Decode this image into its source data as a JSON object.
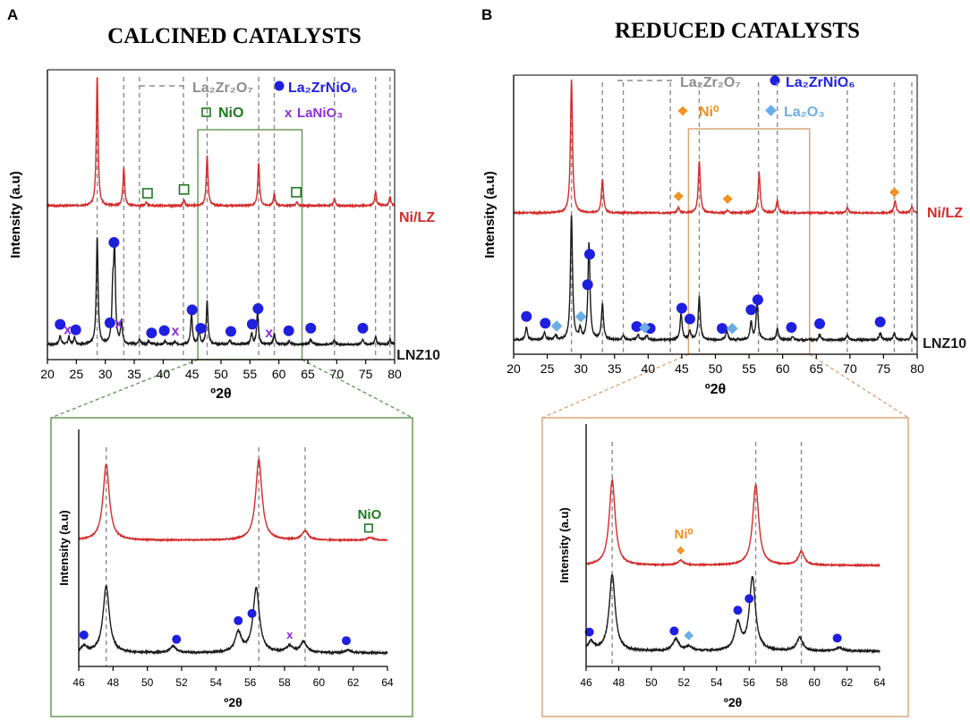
{
  "figure": {
    "panel_a": {
      "letter": "A",
      "title": "CALCINED CATALYSTS"
    },
    "panel_b": {
      "letter": "B",
      "title": "REDUCED CATALYSTS"
    },
    "xlabel": "º2θ",
    "ylabel": "Intensity (a.u)"
  },
  "legend_a": {
    "la2zr2o7": "La₂Zr₂O₇",
    "la2zrnio6": "La₂ZrNiO₆",
    "nio": "NiO",
    "lanio3": "LaNiO₃"
  },
  "legend_b": {
    "la2zr2o7": "La₂Zr₂O₇",
    "la2zrnio6": "La₂ZrNiO₆",
    "ni0": "Ni⁰",
    "la2o3": "La₂O₃"
  },
  "series_labels": {
    "top": "Ni/LZ",
    "bottom": "LNZ10"
  },
  "inset_labels": {
    "nio": "NiO",
    "ni0": "Ni⁰"
  },
  "colors": {
    "nilz": "#d42a2a",
    "lnz10": "#1a1a1a",
    "la2zrnio6": "#1f1fe0",
    "nio": "#1f7a1f",
    "lanio3": "#8a2be2",
    "ni0": "#f0901e",
    "la2o3": "#6aaee8",
    "dash": "#8c8c8c",
    "zoom_a": "#6a9a5a",
    "zoom_b": "#d9a77a"
  },
  "chart_data": [
    {
      "id": "A-main",
      "type": "line",
      "title": "CALCINED CATALYSTS",
      "xlabel": "º2θ",
      "ylabel": "Intensity (a.u)",
      "xlim": [
        20,
        80
      ],
      "xticks": [
        20,
        25,
        30,
        35,
        40,
        45,
        50,
        55,
        60,
        65,
        70,
        75,
        80
      ],
      "reference_lines_La2Zr2O7": [
        28.6,
        33.2,
        35.9,
        43.5,
        47.6,
        56.5,
        59.2,
        69.6,
        76.7,
        79.2
      ],
      "series": [
        {
          "name": "Ni/LZ",
          "peaks": [
            [
              28.6,
              145
            ],
            [
              33.2,
              42
            ],
            [
              37.1,
              4
            ],
            [
              43.6,
              6
            ],
            [
              47.6,
              56
            ],
            [
              56.5,
              48
            ],
            [
              59.2,
              14
            ],
            [
              63.1,
              4
            ],
            [
              69.6,
              8
            ],
            [
              76.7,
              16
            ],
            [
              79.2,
              10
            ]
          ]
        },
        {
          "name": "LNZ10",
          "peaks": [
            [
              22.2,
              10
            ],
            [
              23.7,
              8
            ],
            [
              24.7,
              8
            ],
            [
              28.6,
              120
            ],
            [
              31.3,
              55
            ],
            [
              31.6,
              100
            ],
            [
              32.8,
              25
            ],
            [
              35.9,
              6
            ],
            [
              37.5,
              4
            ],
            [
              40.3,
              4
            ],
            [
              42.0,
              3
            ],
            [
              44.9,
              34
            ],
            [
              46.2,
              16
            ],
            [
              47.6,
              48
            ],
            [
              51.5,
              5
            ],
            [
              55.3,
              12
            ],
            [
              56.3,
              36
            ],
            [
              59.2,
              12
            ],
            [
              61.8,
              4
            ],
            [
              65.5,
              6
            ],
            [
              69.6,
              5
            ],
            [
              74.5,
              6
            ],
            [
              76.7,
              9
            ],
            [
              79.2,
              6
            ]
          ]
        }
      ],
      "markers": {
        "Ni/LZ": {
          "NiO": [
            37.3,
            43.6,
            63.0
          ]
        },
        "LNZ10": {
          "La2ZrNiO6": [
            22.2,
            24.9,
            30.8,
            31.5,
            38.0,
            40.2,
            45.0,
            46.5,
            51.7,
            55.4,
            56.4,
            61.7,
            65.5,
            74.5
          ],
          "LaNiO3": [
            23.5,
            32.3,
            42.1,
            58.3
          ]
        }
      }
    },
    {
      "id": "A-inset",
      "type": "line",
      "xlabel": "º2θ",
      "ylabel": "Intensity (a.u)",
      "xlim": [
        46,
        64
      ],
      "xticks": [
        46,
        48,
        50,
        52,
        54,
        56,
        58,
        60,
        62,
        64
      ],
      "reference_lines_La2Zr2O7": [
        47.6,
        56.5,
        59.2
      ],
      "series": [
        {
          "name": "Ni/LZ",
          "peaks": [
            [
              47.6,
              85
            ],
            [
              56.5,
              90
            ],
            [
              59.2,
              10
            ],
            [
              63.0,
              3
            ]
          ]
        },
        {
          "name": "LNZ10",
          "peaks": [
            [
              46.3,
              7
            ],
            [
              47.6,
              75
            ],
            [
              51.5,
              7
            ],
            [
              55.3,
              22
            ],
            [
              56.35,
              72
            ],
            [
              58.3,
              7
            ],
            [
              59.1,
              12
            ],
            [
              61.7,
              3
            ]
          ]
        }
      ],
      "markers": {
        "Ni/LZ": {
          "NiO": [
            62.9
          ]
        },
        "LNZ10": {
          "La2ZrNiO6": [
            46.3,
            51.7,
            55.3,
            56.1,
            61.6
          ],
          "LaNiO3": [
            58.3
          ]
        }
      }
    },
    {
      "id": "B-main",
      "type": "line",
      "title": "REDUCED CATALYSTS",
      "xlabel": "º2θ",
      "ylabel": "Intensity (a.u)",
      "xlim": [
        20,
        80
      ],
      "xticks": [
        20,
        25,
        30,
        35,
        40,
        45,
        50,
        55,
        60,
        65,
        70,
        75,
        80
      ],
      "reference_lines_La2Zr2O7": [
        28.6,
        33.2,
        36.3,
        43.3,
        47.6,
        56.4,
        59.2,
        69.6,
        76.6,
        79.2
      ],
      "series": [
        {
          "name": "Ni/LZ",
          "peaks": [
            [
              28.6,
              150
            ],
            [
              33.2,
              38
            ],
            [
              44.5,
              6
            ],
            [
              47.6,
              58
            ],
            [
              51.8,
              3
            ],
            [
              56.5,
              44
            ],
            [
              59.2,
              14
            ],
            [
              69.6,
              6
            ],
            [
              76.7,
              14
            ],
            [
              79.2,
              7
            ]
          ]
        },
        {
          "name": "LNZ10",
          "peaks": [
            [
              21.9,
              14
            ],
            [
              24.6,
              8
            ],
            [
              26.2,
              5
            ],
            [
              28.6,
              140
            ],
            [
              29.9,
              12
            ],
            [
              31.2,
              108
            ],
            [
              33.2,
              40
            ],
            [
              36.3,
              5
            ],
            [
              38.5,
              6
            ],
            [
              39.8,
              5
            ],
            [
              44.9,
              30
            ],
            [
              46.2,
              10
            ],
            [
              47.6,
              48
            ],
            [
              51.7,
              10
            ],
            [
              55.3,
              20
            ],
            [
              56.2,
              42
            ],
            [
              59.2,
              12
            ],
            [
              61.5,
              4
            ],
            [
              65.5,
              6
            ],
            [
              69.6,
              5
            ],
            [
              74.5,
              8
            ],
            [
              76.6,
              8
            ],
            [
              79.2,
              8
            ]
          ]
        }
      ],
      "markers": {
        "Ni/LZ": {
          "Ni0": [
            44.5,
            51.8,
            76.6
          ]
        },
        "LNZ10": {
          "La2ZrNiO6": [
            21.9,
            24.7,
            31.0,
            31.3,
            38.3,
            40.3,
            45.0,
            46.2,
            51.0,
            55.3,
            56.3,
            61.3,
            65.5,
            74.5
          ],
          "La2O3": [
            26.4,
            30.0,
            39.5,
            52.5
          ]
        }
      }
    },
    {
      "id": "B-inset",
      "type": "line",
      "xlabel": "º2θ",
      "ylabel": "Intensity (a.u)",
      "xlim": [
        46,
        64
      ],
      "xticks": [
        46,
        48,
        50,
        52,
        54,
        56,
        58,
        60,
        62,
        64
      ],
      "reference_lines_La2Zr2O7": [
        47.6,
        56.4,
        59.2
      ],
      "series": [
        {
          "name": "Ni/LZ",
          "peaks": [
            [
              47.6,
              95
            ],
            [
              51.8,
              5
            ],
            [
              56.4,
              90
            ],
            [
              59.2,
              15
            ]
          ]
        },
        {
          "name": "LNZ10",
          "peaks": [
            [
              46.3,
              10
            ],
            [
              47.6,
              85
            ],
            [
              51.5,
              13
            ],
            [
              52.3,
              5
            ],
            [
              55.3,
              30
            ],
            [
              56.2,
              82
            ],
            [
              59.1,
              15
            ],
            [
              61.5,
              4
            ]
          ]
        }
      ],
      "markers": {
        "Ni/LZ": {
          "Ni0": [
            51.8
          ]
        },
        "LNZ10": {
          "La2ZrNiO6": [
            46.2,
            51.4,
            55.3,
            56.0,
            61.4
          ],
          "La2O3": [
            52.3
          ]
        }
      }
    }
  ]
}
